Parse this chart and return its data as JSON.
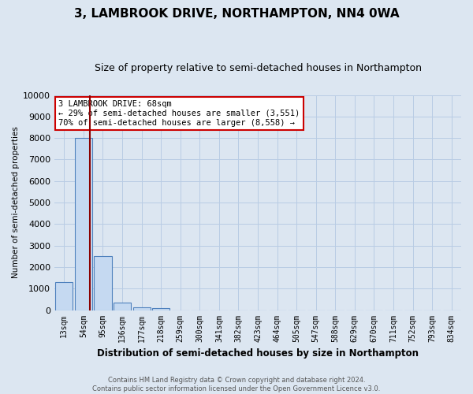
{
  "title": "3, LAMBROOK DRIVE, NORTHAMPTON, NN4 0WA",
  "subtitle": "Size of property relative to semi-detached houses in Northampton",
  "xlabel": "Distribution of semi-detached houses by size in Northampton",
  "ylabel": "Number of semi-detached properties",
  "footnote": "Contains HM Land Registry data © Crown copyright and database right 2024.\nContains public sector information licensed under the Open Government Licence v3.0.",
  "categories": [
    "13sqm",
    "54sqm",
    "95sqm",
    "136sqm",
    "177sqm",
    "218sqm",
    "259sqm",
    "300sqm",
    "341sqm",
    "382sqm",
    "423sqm",
    "464sqm",
    "505sqm",
    "547sqm",
    "588sqm",
    "629sqm",
    "670sqm",
    "711sqm",
    "752sqm",
    "793sqm",
    "834sqm"
  ],
  "values": [
    1300,
    8000,
    2500,
    350,
    120,
    80,
    0,
    0,
    0,
    0,
    0,
    0,
    0,
    0,
    0,
    0,
    0,
    0,
    0,
    0,
    0
  ],
  "bar_color": "#c5d9f1",
  "bar_edge_color": "#4f81bd",
  "ylim": [
    0,
    10000
  ],
  "yticks": [
    0,
    1000,
    2000,
    3000,
    4000,
    5000,
    6000,
    7000,
    8000,
    9000,
    10000
  ],
  "property_line_color": "#8b0000",
  "annotation_text": "3 LAMBROOK DRIVE: 68sqm\n← 29% of semi-detached houses are smaller (3,551)\n70% of semi-detached houses are larger (8,558) →",
  "annotation_box_color": "#ffffff",
  "annotation_box_edge_color": "#cc0000",
  "grid_color": "#b8cce4",
  "bg_color": "#dce6f1",
  "plot_bg_color": "#dce6f1",
  "title_fontsize": 11,
  "subtitle_fontsize": 9
}
